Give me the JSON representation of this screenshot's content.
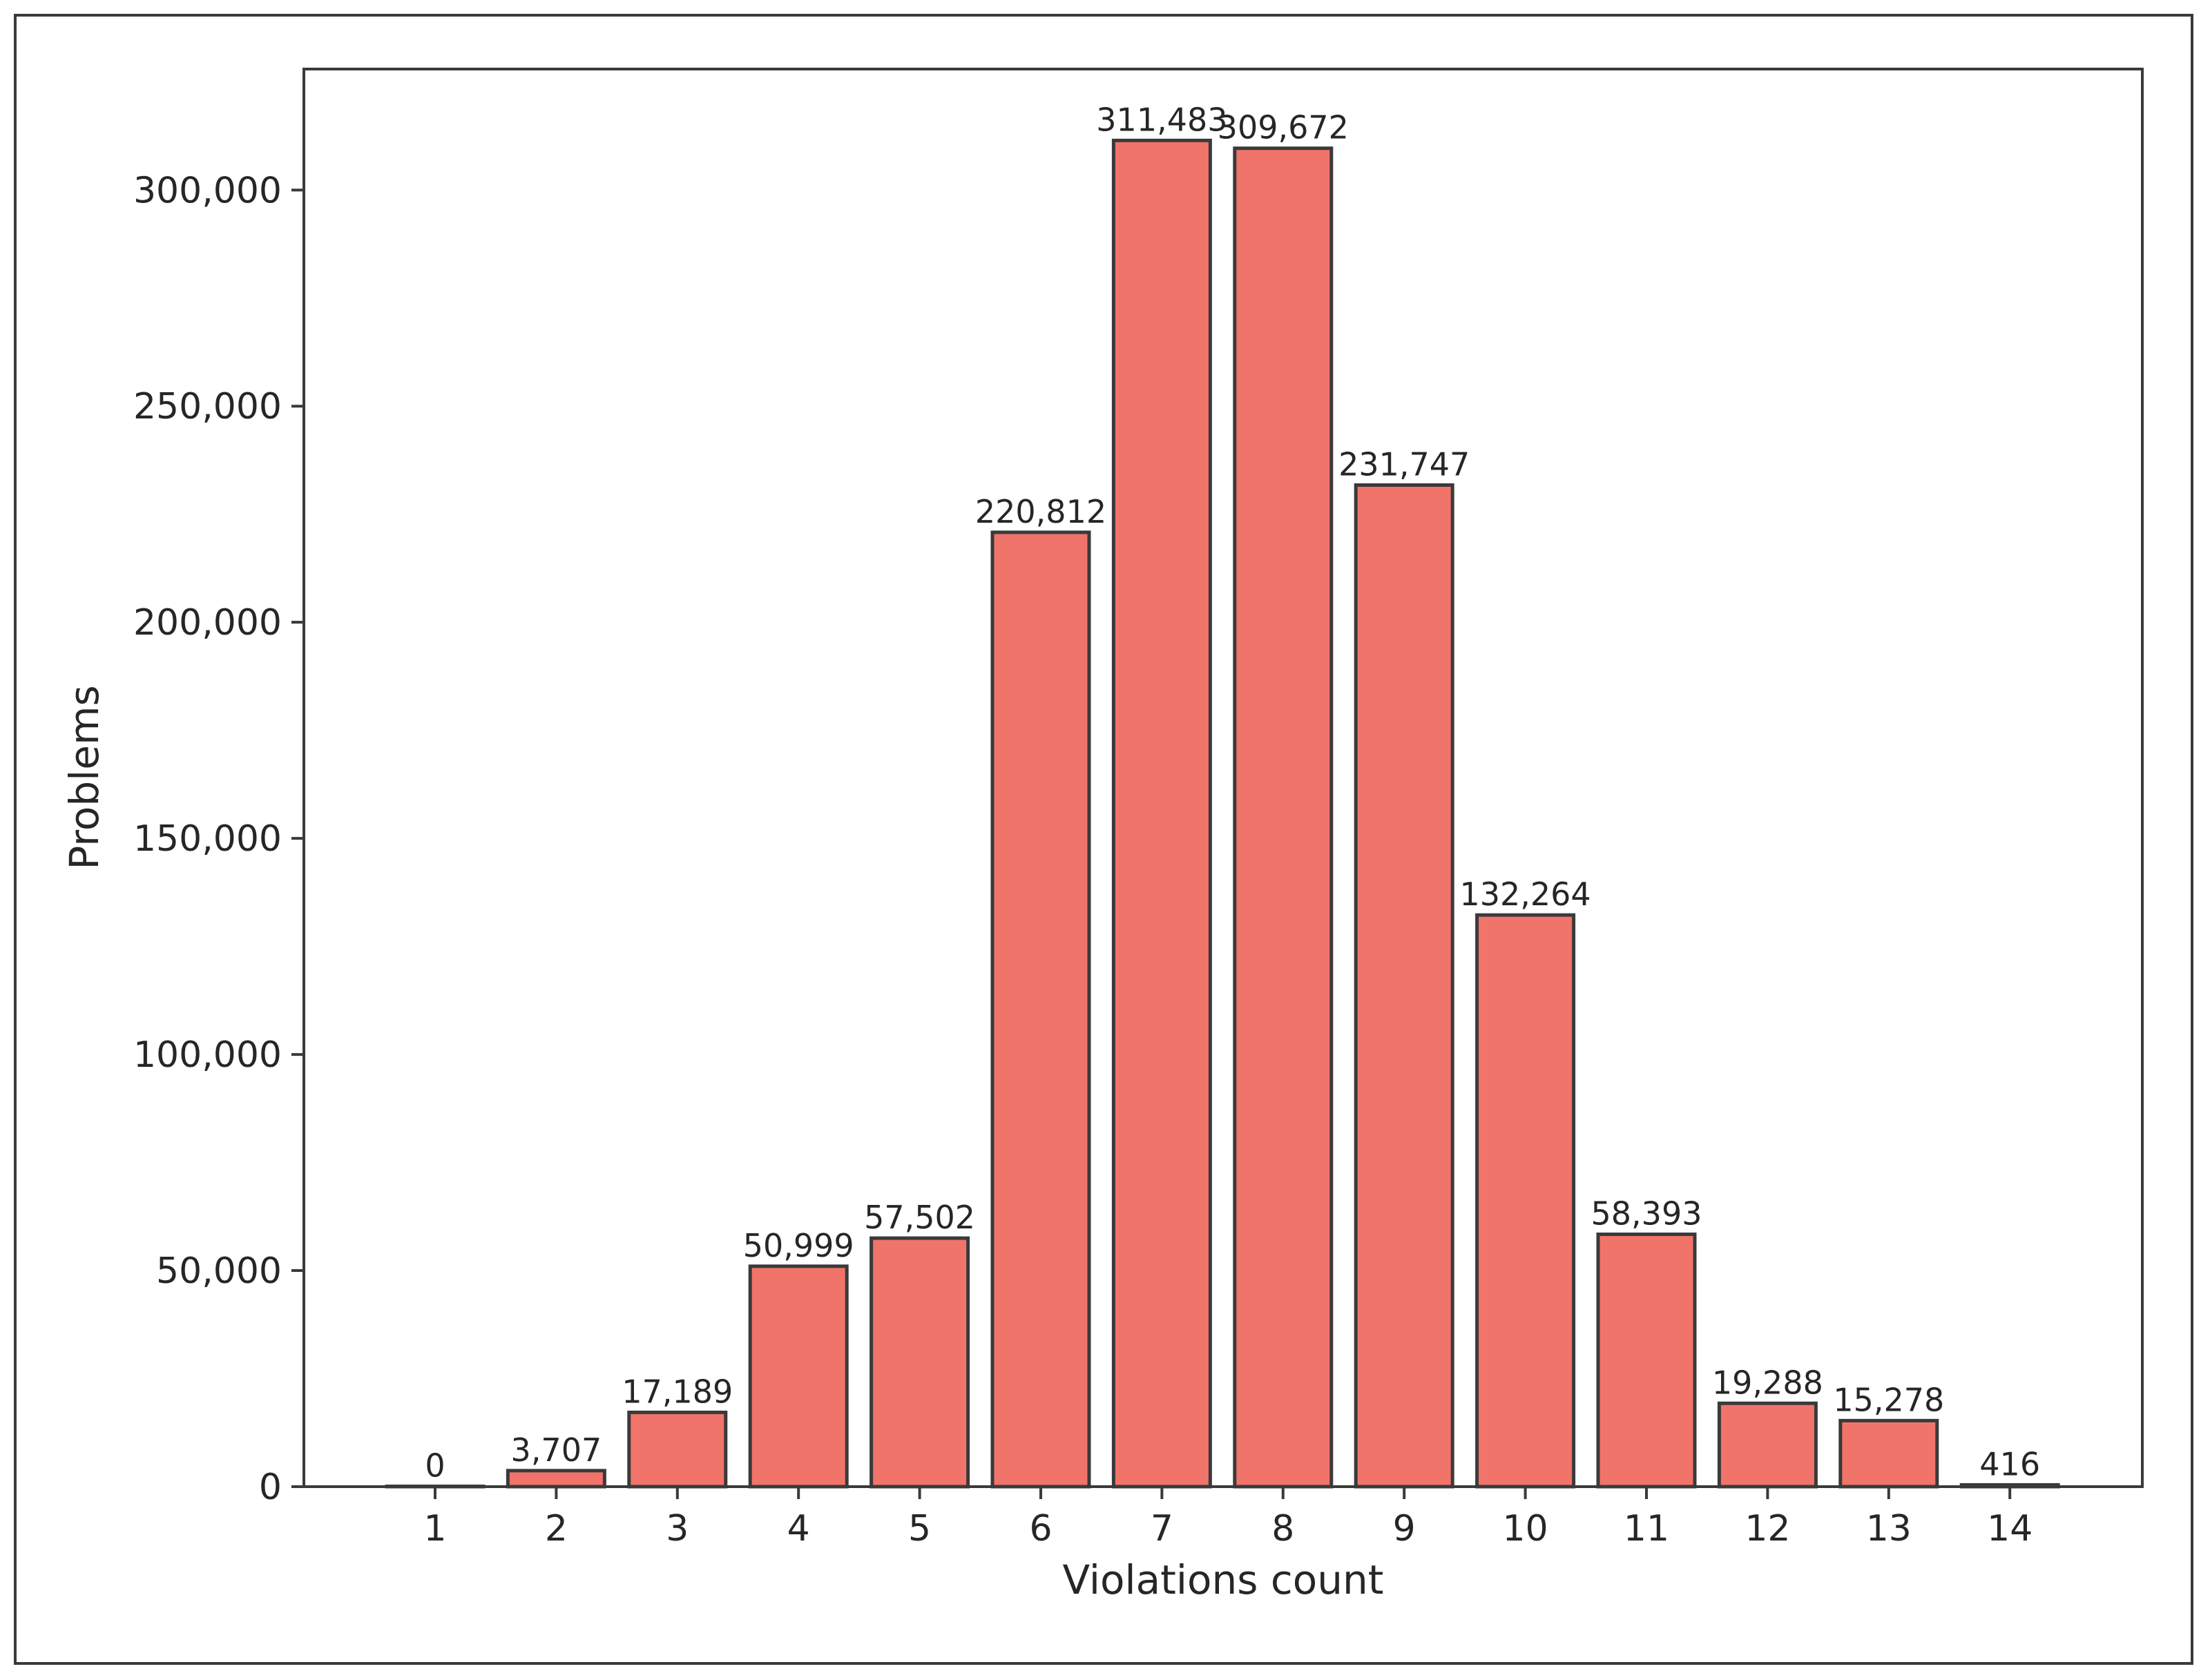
{
  "chart_data": {
    "type": "bar",
    "title": "",
    "xlabel": "Violations count",
    "ylabel": "Problems",
    "categories": [
      "1",
      "2",
      "3",
      "4",
      "5",
      "6",
      "7",
      "8",
      "9",
      "10",
      "11",
      "12",
      "13",
      "14"
    ],
    "values": [
      0,
      3707,
      17189,
      50999,
      57502,
      220812,
      311483,
      309672,
      231747,
      132264,
      58393,
      19288,
      15278,
      416
    ],
    "data_labels": [
      "0",
      "3,707",
      "17,189",
      "50,999",
      "57,502",
      "220,812",
      "311,483",
      "309,672",
      "231,747",
      "132,264",
      "58,393",
      "19,288",
      "15,278",
      "416"
    ],
    "ylim": [
      0,
      328000
    ],
    "yticks": [
      0,
      50000,
      100000,
      150000,
      200000,
      250000,
      300000
    ],
    "ytick_labels": [
      "0",
      "50,000",
      "100,000",
      "150,000",
      "200,000",
      "250,000",
      "300,000"
    ],
    "grid": false,
    "legend": "none",
    "colors": {
      "bar_fill": "#f1746b",
      "bar_edge": "#3a3a3a",
      "axis": "#3a3a3a",
      "text": "#262626"
    }
  }
}
